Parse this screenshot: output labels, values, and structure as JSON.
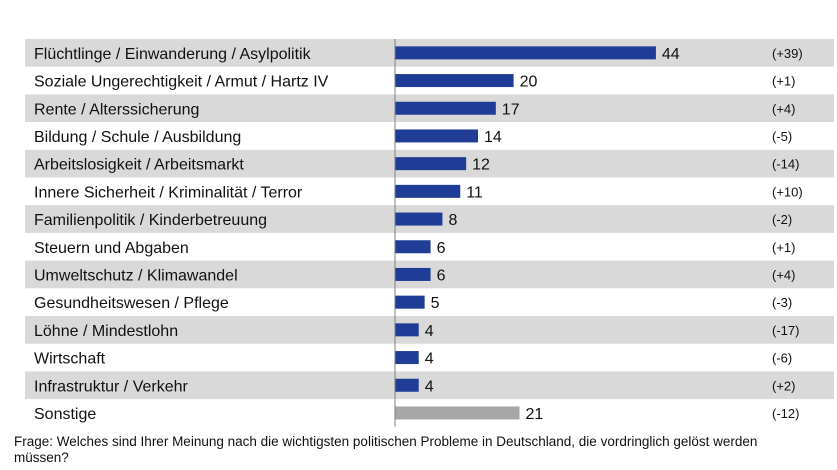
{
  "chart_data": {
    "type": "bar",
    "orientation": "horizontal",
    "categories": [
      "Flüchtlinge / Einwanderung / Asylpolitik",
      "Soziale Ungerechtigkeit / Armut / Hartz IV",
      "Rente / Alterssicherung",
      "Bildung / Schule / Ausbildung",
      "Arbeitslosigkeit / Arbeitsmarkt",
      "Innere Sicherheit / Kriminalität / Terror",
      "Familienpolitik / Kinderbetreuung",
      "Steuern und Abgaben",
      "Umweltschutz / Klimawandel",
      "Gesundheitswesen / Pflege",
      "Löhne / Mindestlohn",
      "Wirtschaft",
      "Infrastruktur / Verkehr",
      "Sonstige"
    ],
    "values": [
      44,
      20,
      17,
      14,
      12,
      11,
      8,
      6,
      6,
      5,
      4,
      4,
      4,
      21
    ],
    "changes": [
      "(+39)",
      "(+1)",
      "(+4)",
      "(-5)",
      "(-14)",
      "(+10)",
      "(-2)",
      "(+1)",
      "(+4)",
      "(-3)",
      "(-17)",
      "(-6)",
      "(+2)",
      "(-12)"
    ],
    "bar_colors": [
      "#1f3d96",
      "#1f3d96",
      "#1f3d96",
      "#1f3d96",
      "#1f3d96",
      "#1f3d96",
      "#1f3d96",
      "#1f3d96",
      "#1f3d96",
      "#1f3d96",
      "#1f3d96",
      "#1f3d96",
      "#1f3d96",
      "#a6a6a6"
    ],
    "row_shading": "alternating",
    "grid": false
  },
  "colors": {
    "bar": "#1f3d96",
    "bar_other": "#a6a6a6",
    "row_band": "#d9d9d9",
    "axis": "#7f7f7f"
  },
  "footnote": "Frage: Welches sind Ihrer Meinung nach die wichtigsten politischen Probleme in Deutschland, die vordringlich gelöst werden müssen?"
}
